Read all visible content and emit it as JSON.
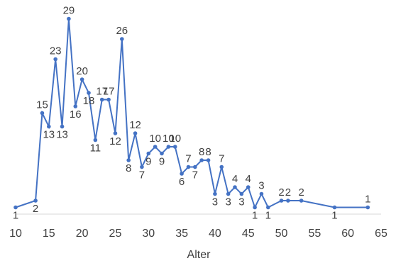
{
  "chart_data": {
    "type": "line",
    "x_label": "Alter",
    "x": [
      10,
      13,
      14,
      15,
      16,
      17,
      18,
      19,
      20,
      21,
      22,
      23,
      24,
      25,
      26,
      27,
      28,
      29,
      30,
      31,
      32,
      33,
      34,
      35,
      36,
      37,
      38,
      39,
      40,
      41,
      42,
      43,
      44,
      45,
      46,
      47,
      48,
      50,
      51,
      53,
      58,
      63
    ],
    "series": [
      {
        "name": "Anzahl",
        "color": "#4472c4",
        "values": [
          1,
          2,
          15,
          13,
          23,
          13,
          29,
          16,
          20,
          18,
          11,
          17,
          17,
          12,
          26,
          8,
          12,
          7,
          9,
          10,
          9,
          10,
          10,
          6,
          7,
          7,
          8,
          8,
          3,
          7,
          3,
          4,
          3,
          4,
          1,
          3,
          1,
          2,
          2,
          2,
          1,
          1
        ]
      }
    ],
    "xlim": [
      10,
      65
    ],
    "xticks": [
      10,
      15,
      20,
      25,
      30,
      35,
      40,
      45,
      50,
      55,
      60,
      65
    ],
    "ylim": [
      0,
      30
    ],
    "grid": false
  }
}
